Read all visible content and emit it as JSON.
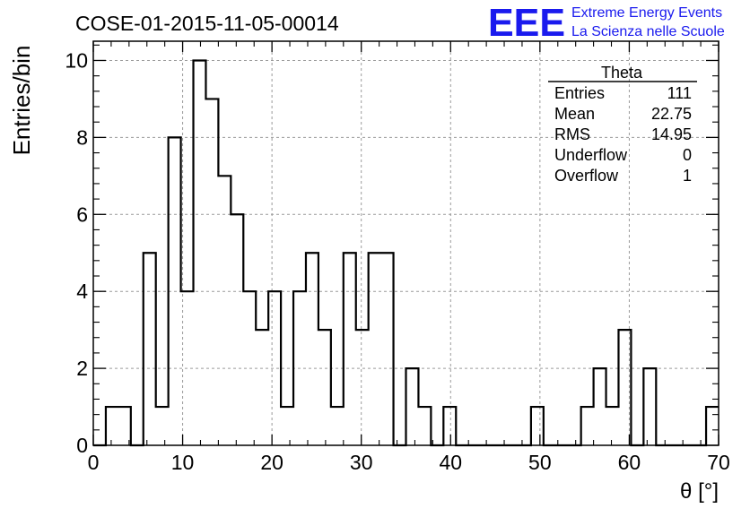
{
  "run_title": "COSE-01-2015-11-05-00014",
  "logo": {
    "mark": "EEE",
    "line1": "Extreme Energy Events",
    "line2": "La Scienza nelle Scuole",
    "color": "#1a1aee"
  },
  "stats_box": {
    "name": "Theta",
    "rows": [
      {
        "label": "Entries",
        "value": "111"
      },
      {
        "label": "Mean",
        "value": "22.75"
      },
      {
        "label": "RMS",
        "value": "14.95"
      },
      {
        "label": "Underflow",
        "value": "0"
      },
      {
        "label": "Overflow",
        "value": "1"
      }
    ]
  },
  "chart_data": {
    "type": "bar",
    "histogram": "step",
    "title": "COSE-01-2015-11-05-00014",
    "xlabel": "θ [°]",
    "ylabel": "Entries/bin",
    "xlim": [
      0,
      70
    ],
    "ylim": [
      0,
      10.5
    ],
    "grid": true,
    "bin_width": 1.4,
    "bin_edges_start": 0,
    "x_ticks": [
      0,
      10,
      20,
      30,
      40,
      50,
      60,
      70
    ],
    "y_ticks": [
      0,
      2,
      4,
      6,
      8,
      10
    ],
    "values": [
      0,
      1,
      1,
      0,
      5,
      1,
      8,
      4,
      10,
      9,
      7,
      6,
      4,
      3,
      4,
      1,
      4,
      5,
      3,
      1,
      5,
      3,
      5,
      5,
      0,
      2,
      1,
      0,
      1,
      0,
      0,
      0,
      0,
      0,
      0,
      1,
      0,
      0,
      0,
      1,
      2,
      1,
      3,
      0,
      2,
      0,
      0,
      0,
      0,
      1
    ],
    "line_color": "#000000"
  }
}
